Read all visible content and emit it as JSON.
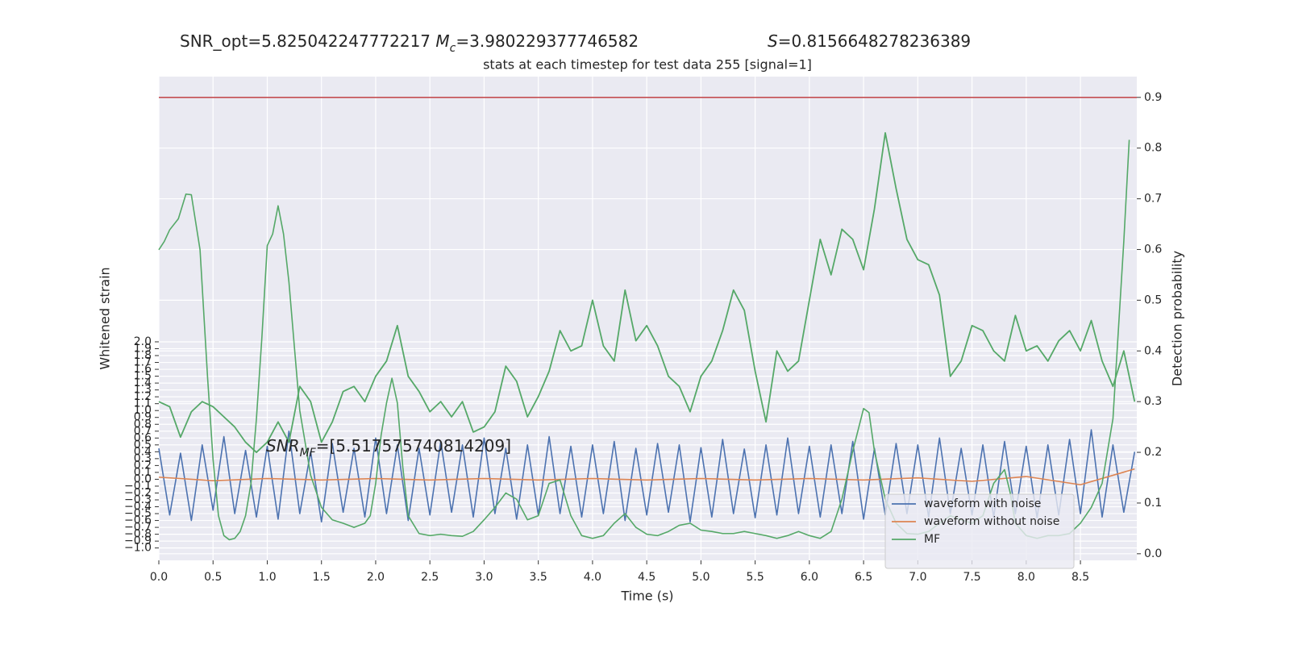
{
  "chart_data": {
    "type": "line",
    "title": {
      "snr_opt": "SNR_opt=5.825042247772217",
      "mc_symbol": "M",
      "mc_sub": "c",
      "mc_value": "=3.980229377746582",
      "s_symbol": "S",
      "s_value": "=0.8156648278236389"
    },
    "subtitle": "stats at each timestep for test data 255 [signal=1]",
    "annotation": {
      "snr": "SNR",
      "mf": "MF",
      "value": "=[5.517575740814209]"
    },
    "xlabel": "Time (s)",
    "ylabel": "Whitened strain",
    "y2label": "Detection probability",
    "xlim": [
      0,
      9.02
    ],
    "ylim": [
      -1.18,
      5.86
    ],
    "y2lim": [
      -0.013,
      0.941
    ],
    "grid": true,
    "legend": "lower right",
    "xticks": [
      {
        "value": 0,
        "label": "0.0"
      },
      0.5,
      {
        "value": 1,
        "label": "1.0"
      },
      1.5,
      {
        "value": 2,
        "label": "2.0"
      },
      2.5,
      {
        "value": 3,
        "label": "3.0"
      },
      3.5,
      {
        "value": 4,
        "label": "4.0"
      },
      4.5,
      {
        "value": 5,
        "label": "5.0"
      },
      5.5,
      {
        "value": 6,
        "label": "6.0"
      },
      6.5,
      {
        "value": 7,
        "label": "7.0"
      },
      7.5,
      {
        "value": 8,
        "label": "8.0"
      },
      8.5
    ],
    "yticks": [
      {
        "value": -1,
        "label": "−1.0"
      },
      {
        "value": -0.9,
        "label": "−0.9"
      },
      {
        "value": -0.8,
        "label": "−0.8"
      },
      {
        "value": -0.7,
        "label": "−0.7"
      },
      {
        "value": -0.6,
        "label": "−0.6"
      },
      {
        "value": -0.5,
        "label": "−0.5"
      },
      {
        "value": -0.4,
        "label": "−0.4"
      },
      {
        "value": -0.3,
        "label": "−0.3"
      },
      {
        "value": -0.2,
        "label": "−0.2"
      },
      {
        "value": -0.1,
        "label": "−0.1"
      },
      {
        "value": 0,
        "label": "0.0"
      },
      0.1,
      0.2,
      0.3,
      0.4,
      0.5,
      0.6,
      0.7,
      0.8,
      0.9,
      {
        "value": 1,
        "label": "1.0"
      },
      1.1,
      1.2,
      1.3,
      1.4,
      1.5,
      1.6,
      1.7,
      1.8,
      1.9,
      {
        "value": 2,
        "label": "2.0"
      }
    ],
    "y2ticks": [
      {
        "value": 0,
        "label": "0.0"
      },
      0.1,
      0.2,
      0.3,
      0.4,
      0.5,
      0.6,
      0.7,
      0.8,
      0.9
    ],
    "threshold": {
      "value": 0.9,
      "color": "#c44e52",
      "axis": "y2"
    },
    "series": [
      {
        "name": "waveform with noise",
        "color": "#4c72b0",
        "axis": "y",
        "x": [
          0,
          0.1,
          0.2,
          0.3,
          0.4,
          0.5,
          0.6,
          0.7,
          0.8,
          0.9,
          1,
          1.1,
          1.2,
          1.3,
          1.4,
          1.5,
          1.6,
          1.7,
          1.8,
          1.9,
          2,
          2.1,
          2.2,
          2.3,
          2.4,
          2.5,
          2.6,
          2.7,
          2.8,
          2.9,
          3,
          3.1,
          3.2,
          3.3,
          3.4,
          3.5,
          3.6,
          3.7,
          3.8,
          3.9,
          4,
          4.1,
          4.2,
          4.3,
          4.4,
          4.5,
          4.6,
          4.7,
          4.8,
          4.9,
          5,
          5.1,
          5.2,
          5.3,
          5.4,
          5.5,
          5.6,
          5.7,
          5.8,
          5.9,
          6,
          6.1,
          6.2,
          6.3,
          6.4,
          6.5,
          6.6,
          6.7,
          6.8,
          6.9,
          7,
          7.1,
          7.2,
          7.3,
          7.4,
          7.5,
          7.6,
          7.7,
          7.8,
          7.9,
          8,
          8.1,
          8.2,
          8.3,
          8.4,
          8.5,
          8.6,
          8.7,
          8.8,
          8.9,
          9
        ],
        "values": [
          0.45,
          -0.52,
          0.38,
          -0.6,
          0.5,
          -0.45,
          0.62,
          -0.5,
          0.42,
          -0.55,
          0.48,
          -0.58,
          0.7,
          -0.5,
          0.4,
          -0.62,
          0.52,
          -0.48,
          0.45,
          -0.55,
          0.6,
          -0.5,
          0.5,
          -0.6,
          0.45,
          -0.52,
          0.55,
          -0.48,
          0.5,
          -0.55,
          0.6,
          -0.5,
          0.45,
          -0.58,
          0.5,
          -0.52,
          0.62,
          -0.5,
          0.48,
          -0.55,
          0.5,
          -0.5,
          0.55,
          -0.6,
          0.45,
          -0.52,
          0.52,
          -0.48,
          0.5,
          -0.62,
          0.46,
          -0.55,
          0.58,
          -0.5,
          0.44,
          -0.56,
          0.5,
          -0.52,
          0.6,
          -0.5,
          0.48,
          -0.55,
          0.5,
          -0.5,
          0.55,
          -0.58,
          0.45,
          -0.52,
          0.52,
          -0.5,
          0.5,
          -0.55,
          0.6,
          -0.5,
          0.45,
          -0.52,
          0.5,
          -0.55,
          0.55,
          -0.5,
          0.48,
          -0.56,
          0.5,
          -0.52,
          0.58,
          -0.5,
          0.72,
          -0.55,
          0.5,
          -0.48,
          0.4
        ]
      },
      {
        "name": "waveform without noise",
        "color": "#dd8452",
        "axis": "y",
        "x": [
          0,
          0.5,
          1,
          1.5,
          2,
          2.5,
          3,
          3.5,
          4,
          4.5,
          5,
          5.5,
          6,
          6.5,
          7,
          7.5,
          8,
          8.5,
          9
        ],
        "values": [
          0.03,
          -0.02,
          0.01,
          -0.01,
          0.01,
          -0.01,
          0.01,
          -0.01,
          0.01,
          -0.01,
          0.01,
          -0.01,
          0.01,
          -0.01,
          0.02,
          -0.03,
          0.04,
          -0.08,
          0.15
        ]
      },
      {
        "name": "MF",
        "color": "#55a868",
        "axis": "y",
        "x": [
          0,
          0.05,
          0.1,
          0.18,
          0.25,
          0.3,
          0.38,
          0.45,
          0.5,
          0.55,
          0.6,
          0.65,
          0.7,
          0.75,
          0.8,
          0.85,
          0.9,
          0.95,
          1,
          1.05,
          1.1,
          1.15,
          1.2,
          1.25,
          1.3,
          1.4,
          1.5,
          1.6,
          1.7,
          1.8,
          1.9,
          1.95,
          2,
          2.05,
          2.1,
          2.15,
          2.2,
          2.25,
          2.3,
          2.4,
          2.5,
          2.6,
          2.7,
          2.8,
          2.9,
          3,
          3.1,
          3.2,
          3.3,
          3.4,
          3.5,
          3.6,
          3.7,
          3.8,
          3.9,
          4,
          4.1,
          4.2,
          4.3,
          4.4,
          4.5,
          4.6,
          4.7,
          4.8,
          4.9,
          5,
          5.1,
          5.2,
          5.3,
          5.4,
          5.5,
          5.6,
          5.7,
          5.8,
          5.9,
          6,
          6.1,
          6.2,
          6.3,
          6.4,
          6.5,
          6.55,
          6.6,
          6.7,
          6.8,
          6.9,
          7,
          7.1,
          7.2,
          7.3,
          7.4,
          7.5,
          7.6,
          7.7,
          7.8,
          7.85,
          7.9,
          8,
          8.1,
          8.2,
          8.3,
          8.4,
          8.5,
          8.6,
          8.7,
          8.8,
          8.9,
          8.95
        ],
        "values": [
          3.34,
          3.46,
          3.63,
          3.79,
          4.15,
          4.14,
          3.34,
          1.47,
          0.29,
          -0.53,
          -0.82,
          -0.88,
          -0.86,
          -0.76,
          -0.53,
          -0.06,
          0.88,
          2.05,
          3.4,
          3.57,
          3.98,
          3.57,
          2.87,
          1.93,
          1.0,
          0.06,
          -0.41,
          -0.59,
          -0.64,
          -0.7,
          -0.64,
          -0.53,
          -0.06,
          0.64,
          1.11,
          1.47,
          1.11,
          0.18,
          -0.53,
          -0.79,
          -0.82,
          -0.8,
          -0.82,
          -0.83,
          -0.76,
          -0.59,
          -0.41,
          -0.2,
          -0.29,
          -0.59,
          -0.53,
          -0.06,
          -0.01,
          -0.53,
          -0.82,
          -0.86,
          -0.82,
          -0.64,
          -0.5,
          -0.7,
          -0.8,
          -0.82,
          -0.76,
          -0.67,
          -0.64,
          -0.74,
          -0.76,
          -0.79,
          -0.79,
          -0.76,
          -0.79,
          -0.82,
          -0.86,
          -0.82,
          -0.76,
          -0.82,
          -0.86,
          -0.76,
          -0.29,
          0.41,
          1.03,
          0.97,
          0.41,
          -0.29,
          -0.64,
          -0.79,
          -0.8,
          -0.76,
          -0.64,
          -0.53,
          -0.59,
          -0.64,
          -0.53,
          -0.06,
          0.14,
          -0.18,
          -0.64,
          -0.82,
          -0.86,
          -0.82,
          -0.82,
          -0.79,
          -0.64,
          -0.41,
          -0.06,
          0.88,
          3.46,
          4.94
        ]
      },
      {
        "color": "#55a868",
        "axis": "y2",
        "x": [
          0,
          0.1,
          0.2,
          0.3,
          0.4,
          0.5,
          0.6,
          0.7,
          0.8,
          0.9,
          1,
          1.1,
          1.2,
          1.3,
          1.4,
          1.5,
          1.6,
          1.7,
          1.8,
          1.9,
          2,
          2.1,
          2.2,
          2.3,
          2.4,
          2.5,
          2.6,
          2.7,
          2.8,
          2.9,
          3,
          3.1,
          3.2,
          3.3,
          3.4,
          3.5,
          3.6,
          3.7,
          3.8,
          3.9,
          4,
          4.1,
          4.2,
          4.3,
          4.4,
          4.5,
          4.6,
          4.7,
          4.8,
          4.9,
          5,
          5.1,
          5.2,
          5.3,
          5.4,
          5.5,
          5.6,
          5.7,
          5.8,
          5.9,
          6,
          6.1,
          6.2,
          6.3,
          6.4,
          6.5,
          6.6,
          6.7,
          6.8,
          6.9,
          7,
          7.1,
          7.2,
          7.3,
          7.4,
          7.5,
          7.6,
          7.7,
          7.8,
          7.9,
          8,
          8.1,
          8.2,
          8.3,
          8.4,
          8.5,
          8.6,
          8.7,
          8.8,
          8.9,
          9
        ],
        "values": [
          0.3,
          0.29,
          0.23,
          0.28,
          0.3,
          0.29,
          0.27,
          0.25,
          0.22,
          0.2,
          0.22,
          0.26,
          0.22,
          0.33,
          0.3,
          0.22,
          0.26,
          0.32,
          0.33,
          0.3,
          0.35,
          0.38,
          0.45,
          0.35,
          0.32,
          0.28,
          0.3,
          0.27,
          0.3,
          0.24,
          0.25,
          0.28,
          0.37,
          0.34,
          0.27,
          0.31,
          0.36,
          0.44,
          0.4,
          0.41,
          0.5,
          0.41,
          0.38,
          0.52,
          0.42,
          0.45,
          0.41,
          0.35,
          0.33,
          0.28,
          0.35,
          0.38,
          0.44,
          0.52,
          0.48,
          0.36,
          0.26,
          0.4,
          0.36,
          0.38,
          0.5,
          0.62,
          0.55,
          0.64,
          0.62,
          0.56,
          0.68,
          0.83,
          0.72,
          0.62,
          0.58,
          0.57,
          0.51,
          0.35,
          0.38,
          0.45,
          0.44,
          0.4,
          0.38,
          0.47,
          0.4,
          0.41,
          0.38,
          0.42,
          0.44,
          0.4,
          0.46,
          0.38,
          0.33,
          0.4,
          0.3
        ]
      }
    ]
  }
}
